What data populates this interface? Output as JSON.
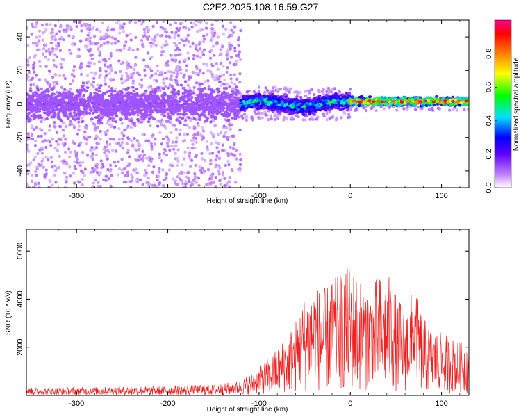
{
  "title": "C2E2.2025.108.16.59.G27",
  "chart_data": [
    {
      "type": "heatmap",
      "xlabel": "Height of straight line (km)",
      "ylabel": "Frequency (Hz)",
      "xlim": [
        -355,
        130
      ],
      "ylim": [
        -50,
        50
      ],
      "xticks": [
        -300,
        -200,
        -100,
        0,
        100
      ],
      "yticks": [
        -40,
        -20,
        0,
        20,
        40
      ],
      "grid": false,
      "colorbar": {
        "label": "Normalized spectral amplitude",
        "range": [
          0,
          1
        ],
        "ticks": [
          "0.0",
          "0.2",
          "0.4",
          "0.6",
          "0.8"
        ],
        "colors": [
          "#ffffff",
          "#a040ff",
          "#0000ff",
          "#00ffff",
          "#00ff00",
          "#ffff00",
          "#ff8000",
          "#ff0000",
          "#ff00a0"
        ]
      },
      "regions": [
        {
          "x_range": [
            -355,
            -120
          ],
          "core_halfwidth_hz": 8,
          "scatter_halfwidth_hz": 50,
          "typical_amplitude": 0.12
        },
        {
          "x_range": [
            -120,
            0
          ],
          "core_halfwidth_hz": 4,
          "scatter_halfwidth_hz": 10,
          "typical_amplitude": 0.45
        },
        {
          "x_range": [
            0,
            130
          ],
          "core_halfwidth_hz": 2,
          "scatter_halfwidth_hz": 4,
          "typical_amplitude": 0.9
        }
      ]
    },
    {
      "type": "line",
      "xlabel": "Height of straight line (km)",
      "ylabel": "SNR (10 * v/v)",
      "xlim": [
        -355,
        130
      ],
      "ylim": [
        0,
        6900
      ],
      "xticks": [
        -300,
        -200,
        -100,
        0,
        100
      ],
      "yticks": [
        2000,
        4000,
        6000
      ],
      "grid": false,
      "color": "#ee2222",
      "series": [
        {
          "x": [
            -350,
            -300,
            -250,
            -200,
            -150,
            -120,
            -100,
            -80,
            -60,
            -50,
            -40,
            -30,
            -20,
            -10,
            0,
            10,
            20,
            30,
            40,
            50,
            60,
            70,
            80,
            90,
            100,
            110,
            120,
            130
          ],
          "y": [
            250,
            260,
            280,
            300,
            340,
            480,
            900,
            1500,
            2400,
            3200,
            3600,
            3400,
            3700,
            3900,
            4200,
            3800,
            3500,
            3800,
            4000,
            3300,
            2800,
            3500,
            2500,
            2100,
            2000,
            1900,
            1700,
            1800
          ]
        }
      ]
    }
  ]
}
